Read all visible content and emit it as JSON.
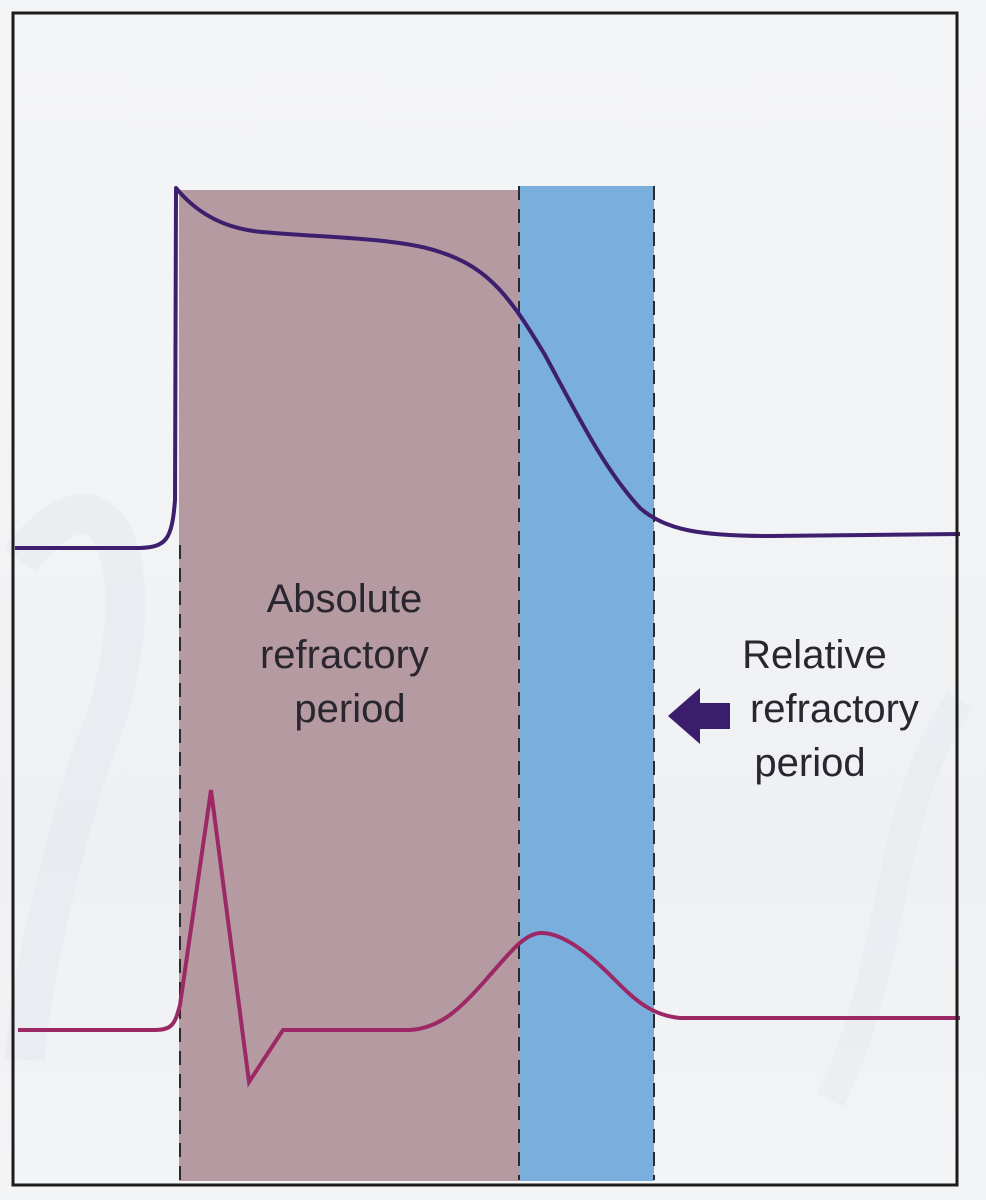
{
  "labels": {
    "absolute": [
      "Absolute",
      "refractory",
      "period"
    ],
    "relative": [
      "Relative",
      "refractory",
      "period"
    ]
  },
  "colors": {
    "frame": "#1c1c1c",
    "background": "#f3f4f6",
    "absolute_fill": "#b69aa1",
    "relative_fill": "#79aedd",
    "action_potential": "#3e1f6e",
    "ecg_trace": "#9c2865",
    "arrow": "#3a1d6b",
    "label_text": "#2a2630",
    "dashed_line": "#2b2b2b"
  },
  "icons": {
    "arrow": "left-arrow-icon"
  }
}
